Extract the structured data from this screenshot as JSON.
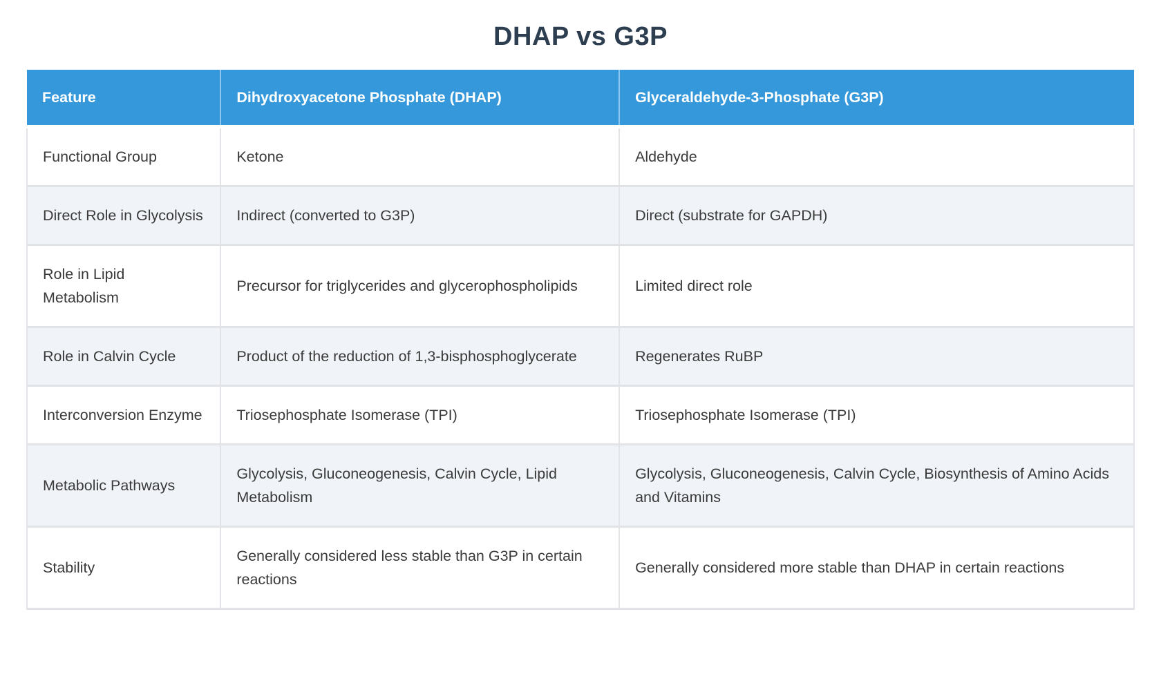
{
  "title": "DHAP vs G3P",
  "colors": {
    "header_background": "#3498db",
    "header_text": "#ffffff",
    "row_background": "#ffffff",
    "alt_row_background": "#f0f4f8",
    "border": "#e1e3e6",
    "title_text": "#2c3e50",
    "body_text": "#3a3a3a"
  },
  "table": {
    "columns": [
      "Feature",
      "Dihydroxyacetone Phosphate (DHAP)",
      "Glyceraldehyde-3-Phosphate (G3P)"
    ],
    "rows": [
      {
        "feature": "Functional Group",
        "dhap": "Ketone",
        "g3p": "Aldehyde"
      },
      {
        "feature": "Direct Role in Glycolysis",
        "dhap": "Indirect (converted to G3P)",
        "g3p": "Direct (substrate for GAPDH)"
      },
      {
        "feature": "Role in Lipid Metabolism",
        "dhap": "Precursor for triglycerides and glycerophospholipids",
        "g3p": "Limited direct role"
      },
      {
        "feature": "Role in Calvin Cycle",
        "dhap": "Product of the reduction of 1,3-bisphosphoglycerate",
        "g3p": "Regenerates RuBP"
      },
      {
        "feature": "Interconversion Enzyme",
        "dhap": "Triosephosphate Isomerase (TPI)",
        "g3p": "Triosephosphate Isomerase (TPI)"
      },
      {
        "feature": "Metabolic Pathways",
        "dhap": "Glycolysis, Gluconeogenesis, Calvin Cycle, Lipid Metabolism",
        "g3p": "Glycolysis, Gluconeogenesis, Calvin Cycle, Biosynthesis of Amino Acids and Vitamins"
      },
      {
        "feature": "Stability",
        "dhap": "Generally considered less stable than G3P in certain reactions",
        "g3p": "Generally considered more stable than DHAP in certain reactions"
      }
    ]
  }
}
